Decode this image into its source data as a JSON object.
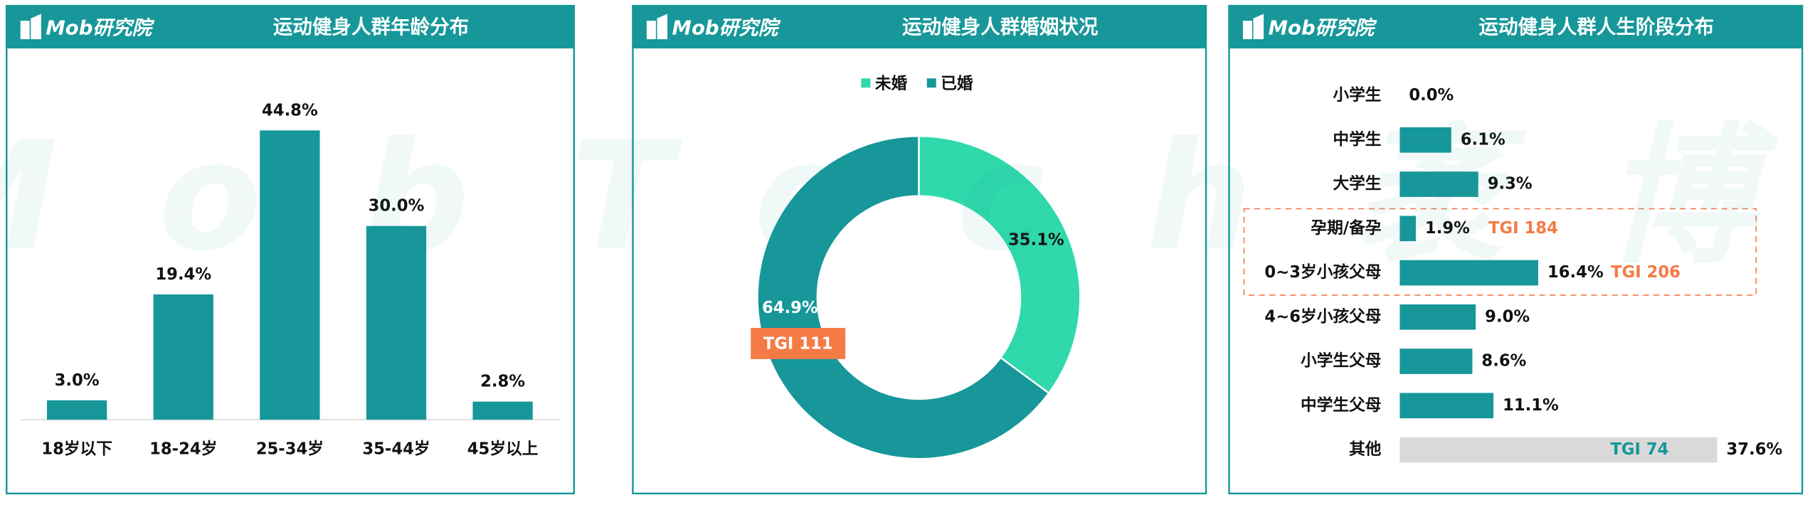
{
  "brand": "Mob研究院",
  "watermark": "MobTech袤博",
  "chart_data": [
    {
      "type": "bar",
      "title": "运动健身人群年龄分布",
      "categories": [
        "18岁以下",
        "18-24岁",
        "25-34岁",
        "35-44岁",
        "45岁以上"
      ],
      "values": [
        3,
        19.4,
        44.8,
        30,
        2.8
      ],
      "value_labels": [
        "3.0%",
        "19.4%",
        "44.8%",
        "30.0%",
        "2.8%"
      ],
      "color": "#17979a"
    },
    {
      "type": "pie",
      "title": "运动健身人群婚姻状况",
      "categories": [
        "未婚",
        "已婚"
      ],
      "values": [
        35.1,
        64.9
      ],
      "value_labels": [
        "35.1%",
        "64.9%"
      ],
      "colors": [
        "#30d9ab",
        "#17979a"
      ],
      "annotations": [
        null,
        "TGI 111"
      ],
      "annotation_color": "#f47b45",
      "legend": "top"
    },
    {
      "type": "hbar",
      "title": "运动健身人群人生阶段分布",
      "categories": [
        "小学生",
        "中学生",
        "大学生",
        "孕期/备孕",
        "0~3岁小孩父母",
        "4~6岁小孩父母",
        "小学生父母",
        "中学生父母",
        "其他"
      ],
      "values": [
        0,
        6.1,
        9.3,
        1.9,
        16.4,
        9,
        8.6,
        11.1,
        37.6
      ],
      "value_labels": [
        "0.0%",
        "6.1%",
        "9.3%",
        "1.9%",
        "16.4%",
        "9.0%",
        "8.6%",
        "11.1%",
        "37.6%"
      ],
      "colors": [
        "#17979a",
        "#17979a",
        "#17979a",
        "#17979a",
        "#17979a",
        "#17979a",
        "#17979a",
        "#17979a",
        "#d9d9d9"
      ],
      "annotations": [
        null,
        null,
        null,
        "TGI 184",
        "TGI 206",
        null,
        null,
        null,
        "TGI 74"
      ],
      "annotation_colors": [
        null,
        null,
        null,
        "#f47b45",
        "#f47b45",
        null,
        null,
        null,
        "#17979a"
      ]
    }
  ]
}
